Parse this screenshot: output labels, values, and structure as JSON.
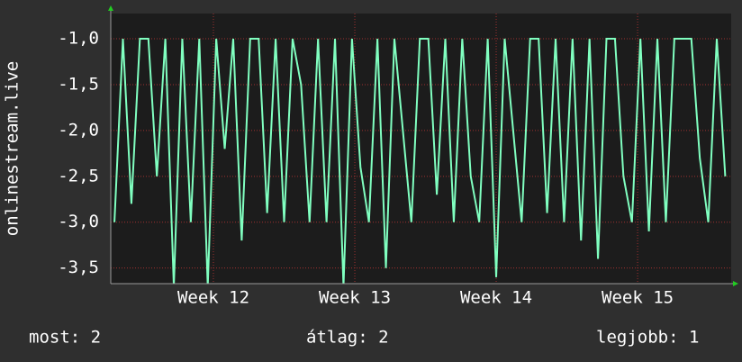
{
  "chart_data": {
    "type": "line",
    "y_label": "onlinestream.live",
    "x": [
      11.3,
      11.36,
      11.42,
      11.48,
      11.54,
      11.6,
      11.66,
      11.72,
      11.78,
      11.84,
      11.9,
      11.96,
      12.02,
      12.08,
      12.14,
      12.2,
      12.26,
      12.32,
      12.38,
      12.44,
      12.5,
      12.56,
      12.62,
      12.68,
      12.74,
      12.8,
      12.86,
      12.92,
      12.98,
      13.04,
      13.1,
      13.16,
      13.22,
      13.28,
      13.34,
      13.4,
      13.46,
      13.52,
      13.58,
      13.64,
      13.7,
      13.76,
      13.82,
      13.88,
      13.94,
      14.0,
      14.06,
      14.12,
      14.18,
      14.24,
      14.3,
      14.36,
      14.42,
      14.48,
      14.54,
      14.6,
      14.66,
      14.72,
      14.78,
      14.84,
      14.9,
      14.96,
      15.02,
      15.08,
      15.14,
      15.2,
      15.26,
      15.32,
      15.38,
      15.44,
      15.5,
      15.56,
      15.62
    ],
    "series": [
      {
        "name": "onlinestream.live",
        "color": "#80ffc0",
        "values": [
          -3.0,
          -1.0,
          -2.8,
          -1.0,
          -1.0,
          -2.5,
          -1.0,
          -3.7,
          -1.0,
          -3.0,
          -1.0,
          -3.7,
          -1.0,
          -2.2,
          -1.0,
          -3.2,
          -1.0,
          -1.0,
          -2.9,
          -1.0,
          -3.0,
          -1.0,
          -1.5,
          -3.0,
          -1.0,
          -3.0,
          -1.0,
          -3.7,
          -1.0,
          -2.4,
          -3.0,
          -1.0,
          -3.5,
          -1.0,
          -2.0,
          -3.0,
          -1.0,
          -1.0,
          -2.7,
          -1.0,
          -3.0,
          -1.0,
          -2.5,
          -3.0,
          -1.0,
          -3.6,
          -1.0,
          -2.0,
          -3.0,
          -1.0,
          -1.0,
          -2.9,
          -1.0,
          -3.0,
          -1.0,
          -3.2,
          -1.0,
          -3.4,
          -1.0,
          -1.0,
          -2.5,
          -3.0,
          -1.0,
          -3.1,
          -1.0,
          -3.0,
          -1.0,
          -1.0,
          -1.0,
          -2.3,
          -3.0,
          -1.0,
          -2.5
        ]
      }
    ],
    "xlim": [
      11.274,
      15.662
    ],
    "xticks": [
      {
        "value": 12,
        "label": "Week 12"
      },
      {
        "value": 13,
        "label": "Week 13"
      },
      {
        "value": 14,
        "label": "Week 14"
      },
      {
        "value": 15,
        "label": "Week 15"
      }
    ],
    "ylim": [
      -3.67,
      -0.725
    ],
    "yticks": [
      {
        "value": -1.0,
        "label": "-1,0"
      },
      {
        "value": -1.5,
        "label": "-1,5"
      },
      {
        "value": -2.0,
        "label": "-2,0"
      },
      {
        "value": -2.5,
        "label": "-2,5"
      },
      {
        "value": -3.0,
        "label": "-3,0"
      },
      {
        "value": -3.5,
        "label": "-3,5"
      }
    ],
    "grid": true,
    "footer": {
      "current": "most: 2",
      "average": "átlag: 2",
      "best": "legjobb: 1"
    }
  }
}
